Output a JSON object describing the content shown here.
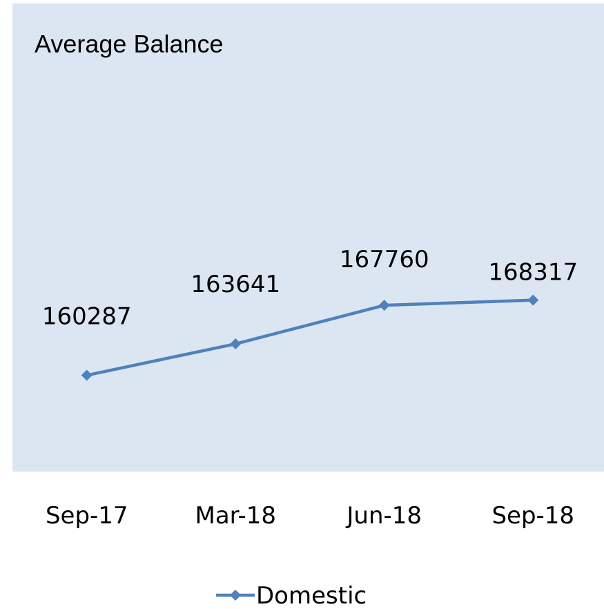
{
  "chart_data": {
    "type": "line",
    "title": "Average Balance",
    "categories": [
      "Sep-17",
      "Mar-18",
      "Jun-18",
      "Sep-18"
    ],
    "series": [
      {
        "name": "Domestic",
        "color": "#4f81bd",
        "values": [
          160287,
          163641,
          167760,
          168317
        ]
      }
    ],
    "ylim": [
      150000,
      200000
    ],
    "data_labels": true,
    "legend": "bottom",
    "background": "#dce6f2"
  }
}
